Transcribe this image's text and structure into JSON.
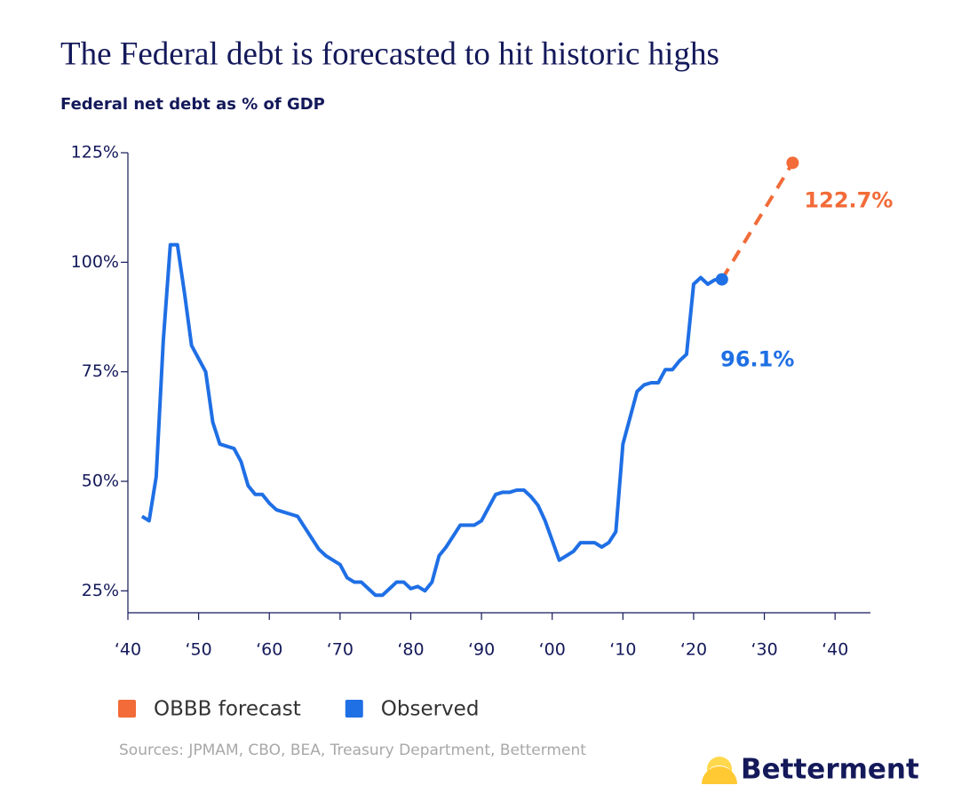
{
  "chart_data": {
    "type": "line",
    "title": "The Federal debt is forecasted to hit historic highs",
    "subtitle": "Federal net debt as % of GDP",
    "xlim": [
      1940,
      2045
    ],
    "xticks": [
      {
        "value": 1940,
        "label": "‘40"
      },
      {
        "value": 1950,
        "label": "‘50"
      },
      {
        "value": 1960,
        "label": "‘60"
      },
      {
        "value": 1970,
        "label": "‘70"
      },
      {
        "value": 1980,
        "label": "‘80"
      },
      {
        "value": 1990,
        "label": "‘90"
      },
      {
        "value": 2000,
        "label": "‘00"
      },
      {
        "value": 2010,
        "label": "‘10"
      },
      {
        "value": 2020,
        "label": "‘20"
      },
      {
        "value": 2030,
        "label": "‘30"
      },
      {
        "value": 2040,
        "label": "‘40"
      }
    ],
    "ylim": [
      20,
      125
    ],
    "yticks": [
      {
        "value": 25,
        "label": "25%"
      },
      {
        "value": 50,
        "label": "50%"
      },
      {
        "value": 75,
        "label": "75%"
      },
      {
        "value": 100,
        "label": "100%"
      },
      {
        "value": 125,
        "label": "125%"
      }
    ],
    "grid": false,
    "series": [
      {
        "name": "OBBB forecast",
        "color": "#f26b38",
        "style": "dashed",
        "markers": "last",
        "x": [
          2024,
          2034
        ],
        "values": [
          96.1,
          122.7
        ],
        "value_labels": [
          null,
          "122.7%"
        ]
      },
      {
        "name": "Observed",
        "color": "#1f6fe5",
        "style": "solid",
        "markers": "last",
        "x": [
          1942,
          1943,
          1944,
          1945,
          1946,
          1947,
          1948,
          1949,
          1950,
          1951,
          1952,
          1953,
          1954,
          1955,
          1956,
          1957,
          1958,
          1959,
          1960,
          1961,
          1962,
          1963,
          1964,
          1965,
          1966,
          1967,
          1968,
          1969,
          1970,
          1971,
          1972,
          1973,
          1974,
          1975,
          1976,
          1977,
          1978,
          1979,
          1980,
          1981,
          1982,
          1983,
          1984,
          1985,
          1986,
          1987,
          1988,
          1989,
          1990,
          1991,
          1992,
          1993,
          1994,
          1995,
          1996,
          1997,
          1998,
          1999,
          2000,
          2001,
          2002,
          2003,
          2004,
          2005,
          2006,
          2007,
          2008,
          2009,
          2010,
          2011,
          2012,
          2013,
          2014,
          2015,
          2016,
          2017,
          2018,
          2019,
          2020,
          2021,
          2022,
          2023,
          2024
        ],
        "values": [
          42,
          41,
          51,
          82,
          104,
          104,
          93,
          81,
          78,
          75,
          63.5,
          58.5,
          58,
          57.5,
          54.5,
          49,
          47,
          47,
          45,
          43.5,
          43,
          42.5,
          42,
          39.5,
          37,
          34.5,
          33,
          32,
          31,
          28,
          27,
          27,
          25.5,
          24,
          24,
          25.5,
          27,
          27,
          25.5,
          26,
          25,
          27,
          33,
          35,
          37.5,
          40,
          40,
          40,
          41,
          44,
          47,
          47.5,
          47.5,
          48,
          48,
          46.5,
          44.5,
          41,
          36.5,
          32,
          33,
          34,
          36,
          36,
          36,
          35,
          36,
          38.5,
          58.5,
          64.5,
          70.5,
          72,
          72.5,
          72.5,
          75.5,
          75.5,
          77.5,
          79,
          95,
          96.5,
          95,
          96,
          96.1
        ],
        "value_labels": [
          null,
          null,
          null,
          null,
          null,
          null,
          null,
          null,
          null,
          null,
          null,
          null,
          null,
          null,
          null,
          null,
          null,
          null,
          null,
          null,
          null,
          null,
          null,
          null,
          null,
          null,
          null,
          null,
          null,
          null,
          null,
          null,
          null,
          null,
          null,
          null,
          null,
          null,
          null,
          null,
          null,
          null,
          null,
          null,
          null,
          null,
          null,
          null,
          null,
          null,
          null,
          null,
          null,
          null,
          null,
          null,
          null,
          null,
          null,
          null,
          null,
          null,
          null,
          null,
          null,
          null,
          null,
          null,
          null,
          null,
          null,
          null,
          null,
          null,
          null,
          null,
          null,
          null,
          null,
          null,
          null,
          null,
          "96.1%"
        ]
      }
    ],
    "legend": "bottom-left",
    "source": "Sources: JPMAM, CBO, BEA, Treasury Department, Betterment",
    "logo": "Betterment"
  }
}
